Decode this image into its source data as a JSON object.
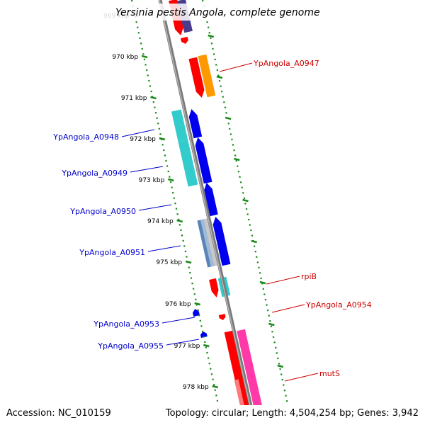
{
  "title": "Yersinia pestis Angola, complete genome",
  "footer": {
    "accession": "Accession: NC_010159",
    "topology": "Topology: circular; Length: 4,504,254 bp; Genes: 3,942"
  },
  "colors": {
    "backbone": "#7a7a7a",
    "ruler": "#1a8a1a",
    "reverse_label": "#0000cc",
    "forward_label": "#cc0000",
    "red": "#ff0000",
    "orange": "#ff9900",
    "blue": "#0000ee",
    "cyan": "#33cccc",
    "steel": "#5a84b8",
    "pink": "#ff3aa8",
    "navy": "#4a3c8c"
  },
  "ticks": [
    {
      "label": "969 kbp"
    },
    {
      "label": "970 kbp"
    },
    {
      "label": "971 kbp"
    },
    {
      "label": "972 kbp"
    },
    {
      "label": "973 kbp"
    },
    {
      "label": "974 kbp"
    },
    {
      "label": "975 kbp"
    },
    {
      "label": "976 kbp"
    },
    {
      "label": "977 kbp"
    },
    {
      "label": "978 kbp"
    }
  ],
  "labels": [
    {
      "name": "YpAngola_A0947",
      "strand": "forward"
    },
    {
      "name": "YpAngola_A0948",
      "strand": "reverse"
    },
    {
      "name": "YpAngola_A0949",
      "strand": "reverse"
    },
    {
      "name": "YpAngola_A0950",
      "strand": "reverse"
    },
    {
      "name": "YpAngola_A0951",
      "strand": "reverse"
    },
    {
      "name": "rpiB",
      "strand": "forward"
    },
    {
      "name": "YpAngola_A0954",
      "strand": "forward"
    },
    {
      "name": "YpAngola_A0953",
      "strand": "reverse"
    },
    {
      "name": "YpAngola_A0955",
      "strand": "reverse"
    },
    {
      "name": "mutS",
      "strand": "forward"
    }
  ]
}
